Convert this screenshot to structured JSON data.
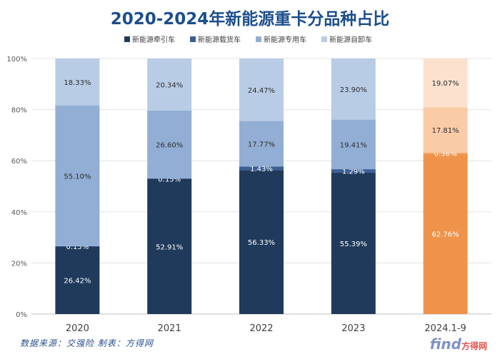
{
  "chart_data": {
    "type": "bar",
    "stacked": true,
    "title": "2020-2024年新能源重卡分品种占比",
    "categories": [
      "2020",
      "2021",
      "2022",
      "2023",
      "2024.1-9"
    ],
    "series": [
      {
        "name": "新能源牵引车",
        "color": "#203a5c",
        "highlight_color": "#f0934a",
        "values": [
          26.42,
          52.91,
          56.33,
          55.39,
          62.76
        ],
        "labels": [
          "26.42%",
          "52.91%",
          "56.33%",
          "55.39%",
          "62.76%"
        ]
      },
      {
        "name": "新能源载货车",
        "color": "#3a5f95",
        "highlight_color": "#f4a766",
        "values": [
          0.15,
          0.15,
          1.43,
          1.29,
          0.36
        ],
        "labels": [
          "0.15%",
          "0.15%",
          "1.43%",
          "1.29%",
          "0.36%"
        ]
      },
      {
        "name": "新能源专用车",
        "color": "#92aed5",
        "highlight_color": "#f9cba7",
        "values": [
          55.1,
          26.6,
          17.77,
          19.41,
          17.81
        ],
        "labels": [
          "55.10%",
          "26.60%",
          "17.77%",
          "19.41%",
          "17.81%"
        ]
      },
      {
        "name": "新能源自卸车",
        "color": "#b9cce6",
        "highlight_color": "#fbe1ce",
        "values": [
          18.33,
          20.34,
          24.47,
          23.9,
          19.07
        ],
        "labels": [
          "18.33%",
          "20.34%",
          "24.47%",
          "23.90%",
          "19.07%"
        ]
      }
    ],
    "highlight_category_index": 4,
    "y_ticks": [
      "0%",
      "20%",
      "40%",
      "60%",
      "80%",
      "100%"
    ],
    "ylim": [
      0,
      100
    ],
    "grid": true,
    "legend_position": "top-center"
  },
  "footer": {
    "source_note": "数据来源：交强险  制表：方得网",
    "watermark": "find",
    "watermark_suffix": "方得网"
  }
}
